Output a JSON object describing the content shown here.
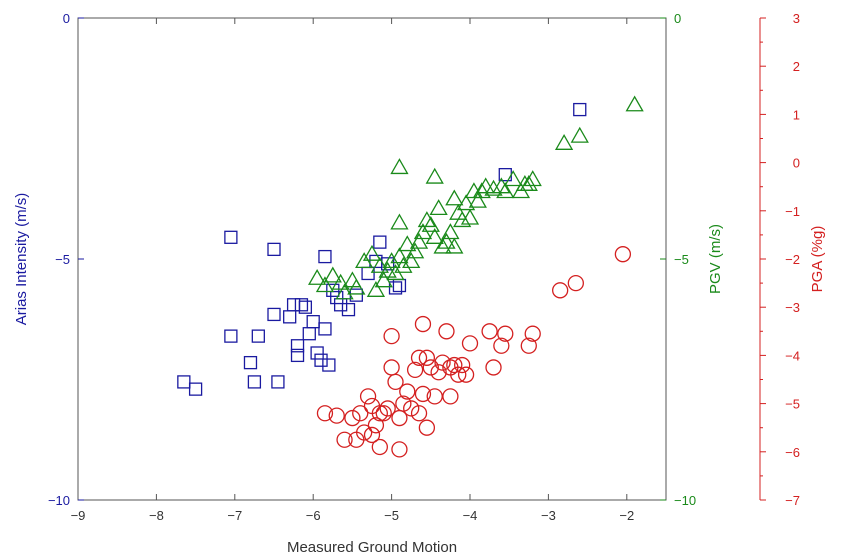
{
  "chart_data": {
    "type": "scatter",
    "xlabel": "Measured Ground Motion",
    "xlim": [
      -9,
      -1.5
    ],
    "xticks": [
      -9,
      -8,
      -7,
      -6,
      -5,
      -4,
      -3,
      -2
    ],
    "axes": [
      {
        "id": "arias",
        "label": "Arias Intensity (m/s)",
        "side": "left",
        "color": "#1a1aa0",
        "ylim": [
          -10,
          0
        ],
        "ticks": [
          -10,
          -5,
          0
        ]
      },
      {
        "id": "pgv",
        "label": "PGV (m/s)",
        "side": "right-inner",
        "color": "#1a8a1a",
        "ylim": [
          -10,
          0
        ],
        "ticks": [
          -10,
          -5,
          0
        ]
      },
      {
        "id": "pga",
        "label": "PGA (%g)",
        "side": "right-outer",
        "color": "#d42020",
        "ylim": [
          -7,
          3
        ],
        "ticks": [
          -7,
          -6,
          -5,
          -4,
          -3,
          -2,
          -1,
          0,
          1,
          2,
          3
        ]
      }
    ],
    "series": [
      {
        "axis": "arias",
        "marker": "square",
        "color": "#1a1aa0",
        "points": [
          [
            -7.65,
            -7.55
          ],
          [
            -7.5,
            -7.7
          ],
          [
            -7.05,
            -4.55
          ],
          [
            -7.05,
            -6.6
          ],
          [
            -6.8,
            -7.15
          ],
          [
            -6.75,
            -7.55
          ],
          [
            -6.7,
            -6.6
          ],
          [
            -6.5,
            -4.8
          ],
          [
            -6.45,
            -7.55
          ],
          [
            -6.5,
            -6.15
          ],
          [
            -6.3,
            -6.2
          ],
          [
            -6.25,
            -5.95
          ],
          [
            -6.2,
            -6.8
          ],
          [
            -6.2,
            -7.0
          ],
          [
            -6.15,
            -5.95
          ],
          [
            -6.1,
            -6.0
          ],
          [
            -6.05,
            -6.55
          ],
          [
            -6.0,
            -6.3
          ],
          [
            -5.95,
            -6.95
          ],
          [
            -5.9,
            -7.1
          ],
          [
            -5.85,
            -6.45
          ],
          [
            -5.85,
            -4.95
          ],
          [
            -5.8,
            -7.2
          ],
          [
            -5.75,
            -5.65
          ],
          [
            -5.7,
            -5.8
          ],
          [
            -5.65,
            -5.95
          ],
          [
            -5.55,
            -6.05
          ],
          [
            -5.45,
            -5.75
          ],
          [
            -5.3,
            -5.3
          ],
          [
            -5.2,
            -5.05
          ],
          [
            -5.15,
            -4.65
          ],
          [
            -5.05,
            -5.1
          ],
          [
            -4.95,
            -5.6
          ],
          [
            -4.9,
            -5.55
          ],
          [
            -3.55,
            -3.25
          ],
          [
            -2.6,
            -1.9
          ]
        ]
      },
      {
        "axis": "pgv",
        "marker": "triangle",
        "color": "#1a8a1a",
        "points": [
          [
            -1.9,
            -1.8
          ],
          [
            -2.6,
            -2.45
          ],
          [
            -2.8,
            -2.6
          ],
          [
            -3.2,
            -3.35
          ],
          [
            -3.25,
            -3.45
          ],
          [
            -3.3,
            -3.45
          ],
          [
            -3.35,
            -3.6
          ],
          [
            -3.45,
            -3.35
          ],
          [
            -3.55,
            -3.6
          ],
          [
            -3.6,
            -3.5
          ],
          [
            -3.7,
            -3.55
          ],
          [
            -3.8,
            -3.5
          ],
          [
            -3.85,
            -3.6
          ],
          [
            -3.9,
            -3.8
          ],
          [
            -3.95,
            -3.6
          ],
          [
            -4.0,
            -4.15
          ],
          [
            -4.05,
            -3.85
          ],
          [
            -4.1,
            -4.2
          ],
          [
            -4.15,
            -4.05
          ],
          [
            -4.2,
            -3.75
          ],
          [
            -4.2,
            -4.75
          ],
          [
            -4.25,
            -4.45
          ],
          [
            -4.3,
            -4.65
          ],
          [
            -4.35,
            -4.75
          ],
          [
            -4.4,
            -3.95
          ],
          [
            -4.45,
            -3.3
          ],
          [
            -4.45,
            -4.55
          ],
          [
            -4.5,
            -4.3
          ],
          [
            -4.55,
            -4.2
          ],
          [
            -4.6,
            -4.45
          ],
          [
            -4.65,
            -4.65
          ],
          [
            -4.7,
            -4.85
          ],
          [
            -4.75,
            -5.05
          ],
          [
            -4.8,
            -4.7
          ],
          [
            -4.85,
            -5.15
          ],
          [
            -4.9,
            -4.95
          ],
          [
            -4.9,
            -4.25
          ],
          [
            -4.9,
            -3.1
          ],
          [
            -4.95,
            -5.3
          ],
          [
            -5.0,
            -5.05
          ],
          [
            -5.05,
            -5.25
          ],
          [
            -5.1,
            -5.45
          ],
          [
            -5.15,
            -5.15
          ],
          [
            -5.2,
            -5.65
          ],
          [
            -5.25,
            -4.9
          ],
          [
            -5.35,
            -5.05
          ],
          [
            -5.45,
            -5.6
          ],
          [
            -5.5,
            -5.45
          ],
          [
            -5.6,
            -5.7
          ],
          [
            -5.65,
            -5.5
          ],
          [
            -5.75,
            -5.35
          ],
          [
            -5.85,
            -5.55
          ],
          [
            -5.95,
            -5.4
          ]
        ]
      },
      {
        "axis": "pga",
        "marker": "circle",
        "color": "#d42020",
        "points": [
          [
            -2.05,
            -1.9
          ],
          [
            -2.65,
            -2.5
          ],
          [
            -2.85,
            -2.65
          ],
          [
            -3.2,
            -3.55
          ],
          [
            -3.25,
            -3.8
          ],
          [
            -3.55,
            -3.55
          ],
          [
            -3.6,
            -3.8
          ],
          [
            -3.7,
            -4.25
          ],
          [
            -3.75,
            -3.5
          ],
          [
            -4.0,
            -3.75
          ],
          [
            -4.05,
            -4.4
          ],
          [
            -4.1,
            -4.2
          ],
          [
            -4.15,
            -4.4
          ],
          [
            -4.2,
            -4.2
          ],
          [
            -4.25,
            -4.85
          ],
          [
            -4.25,
            -4.25
          ],
          [
            -4.3,
            -3.5
          ],
          [
            -4.35,
            -4.15
          ],
          [
            -4.4,
            -4.35
          ],
          [
            -4.45,
            -4.85
          ],
          [
            -4.5,
            -4.25
          ],
          [
            -4.55,
            -4.05
          ],
          [
            -4.6,
            -4.8
          ],
          [
            -4.6,
            -3.35
          ],
          [
            -4.65,
            -4.05
          ],
          [
            -4.7,
            -4.3
          ],
          [
            -4.75,
            -5.1
          ],
          [
            -4.8,
            -4.75
          ],
          [
            -4.85,
            -5.0
          ],
          [
            -4.9,
            -5.3
          ],
          [
            -4.95,
            -4.55
          ],
          [
            -5.0,
            -3.6
          ],
          [
            -5.0,
            -4.25
          ],
          [
            -5.05,
            -5.1
          ],
          [
            -5.1,
            -5.2
          ],
          [
            -5.15,
            -5.2
          ],
          [
            -5.2,
            -5.45
          ],
          [
            -5.25,
            -5.05
          ],
          [
            -5.25,
            -5.65
          ],
          [
            -5.3,
            -4.85
          ],
          [
            -5.35,
            -5.6
          ],
          [
            -5.4,
            -5.2
          ],
          [
            -5.45,
            -5.75
          ],
          [
            -5.5,
            -5.3
          ],
          [
            -5.6,
            -5.75
          ],
          [
            -5.7,
            -5.25
          ],
          [
            -5.85,
            -5.2
          ],
          [
            -5.15,
            -5.9
          ],
          [
            -4.9,
            -5.95
          ],
          [
            -4.65,
            -5.2
          ],
          [
            -4.55,
            -5.5
          ]
        ]
      }
    ],
    "grid": false,
    "legend": "none"
  }
}
